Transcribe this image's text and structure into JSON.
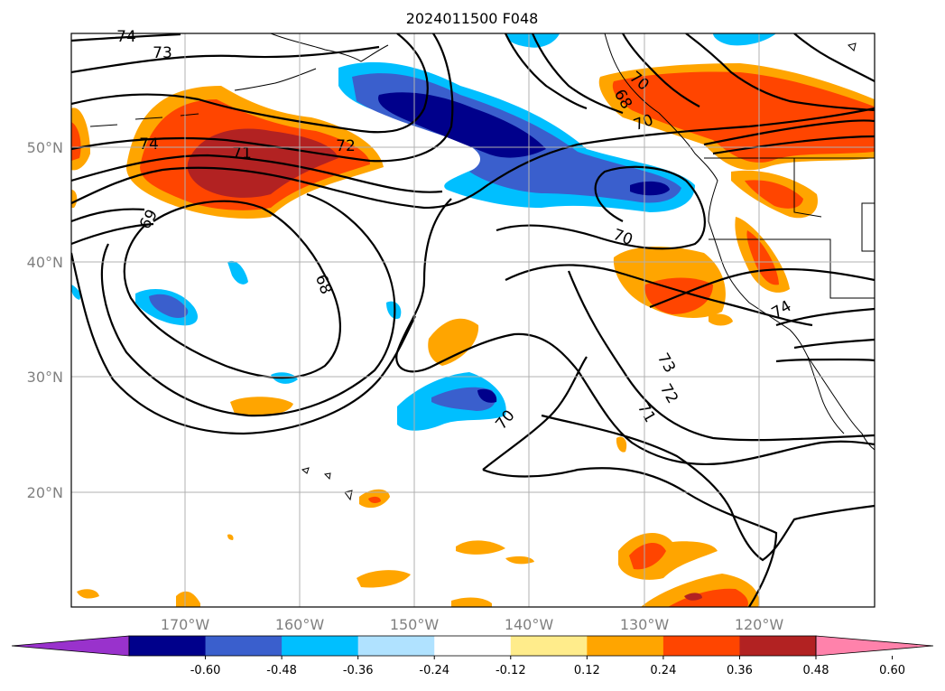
{
  "title": "2024011500 F048",
  "map": {
    "lat_labels": [
      "50°N",
      "40°N",
      "30°N",
      "20°N"
    ],
    "lon_labels": [
      "170°W",
      "160°W",
      "150°W",
      "140°W",
      "130°W",
      "120°W"
    ],
    "grid": true,
    "contour_labels": [
      "74",
      "73",
      "74",
      "71",
      "72",
      "69",
      "68",
      "70",
      "70",
      "70",
      "73",
      "72",
      "71",
      "74",
      "70",
      "68"
    ]
  },
  "colorbar": {
    "ticks": [
      "-0.60",
      "-0.48",
      "-0.36",
      "-0.24",
      "-0.12",
      "0.12",
      "0.24",
      "0.36",
      "0.48",
      "0.60"
    ],
    "colors": [
      "#9932cc",
      "#00008b",
      "#3a5fcd",
      "#00bfff",
      "#b0e2ff",
      "#ffffff",
      "#ffec8b",
      "#ffa500",
      "#ff4500",
      "#b22222",
      "#ff82ab"
    ],
    "extend": "both"
  }
}
